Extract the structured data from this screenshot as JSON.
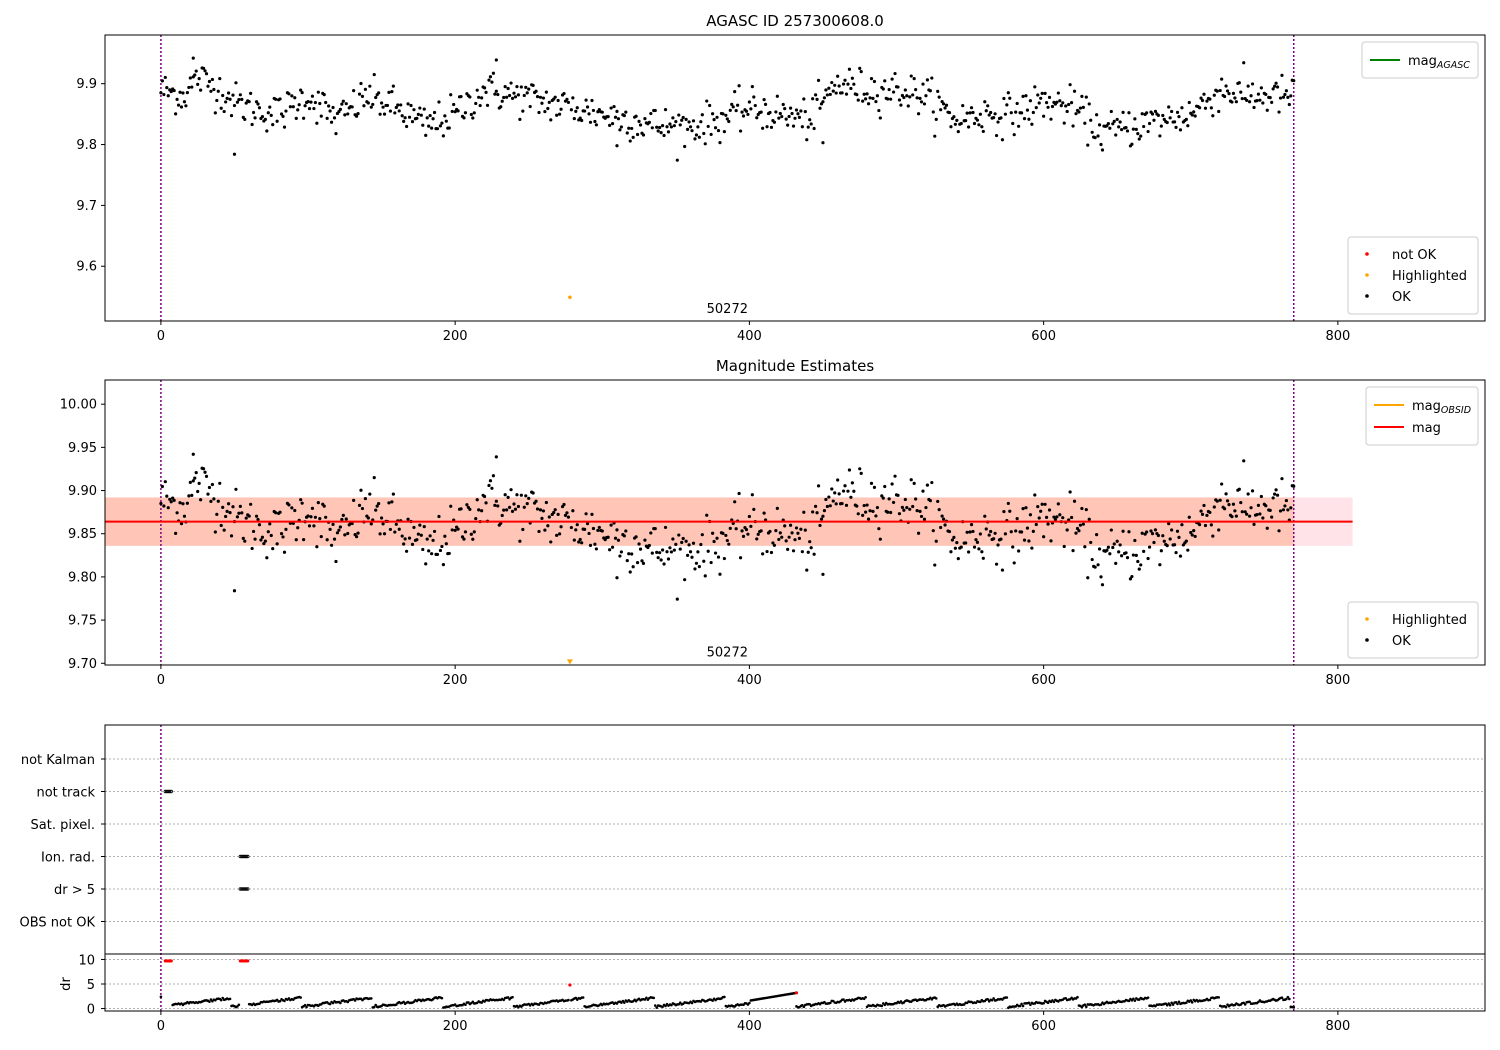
{
  "figure": {
    "title_top": "AGASC ID 257300608.0",
    "title_mid": "Magnitude Estimates"
  },
  "chart_data": [
    {
      "type": "scatter",
      "title": "AGASC ID 257300608.0",
      "xlim": [
        -38,
        900
      ],
      "ylim": [
        9.51,
        9.98
      ],
      "xticks": [
        0,
        200,
        400,
        600,
        800
      ],
      "yticks": [
        9.6,
        9.7,
        9.8,
        9.9
      ],
      "vlines": [
        0,
        770
      ],
      "obsid_label": {
        "text": "50272",
        "x": 385,
        "y": 9.523
      },
      "legend_lines": [
        {
          "name": "mag",
          "sub": "AGASC",
          "color": "#008000"
        }
      ],
      "legend_points": [
        {
          "name": "not OK",
          "color": "#ff0000"
        },
        {
          "name": "Highlighted",
          "color": "#ffa500"
        },
        {
          "name": "OK",
          "color": "#000000"
        }
      ],
      "highlighted_points": [
        {
          "x": 278,
          "y": 9.549
        }
      ],
      "series_description": "OK points, magnitude vs sample index 0-770",
      "ok_anchor_points": [
        [
          0,
          9.89
        ],
        [
          15,
          9.88
        ],
        [
          25,
          9.91
        ],
        [
          40,
          9.89
        ],
        [
          50,
          9.87
        ],
        [
          60,
          9.86
        ],
        [
          80,
          9.85
        ],
        [
          100,
          9.88
        ],
        [
          120,
          9.84
        ],
        [
          140,
          9.88
        ],
        [
          160,
          9.86
        ],
        [
          180,
          9.83
        ],
        [
          200,
          9.85
        ],
        [
          220,
          9.89
        ],
        [
          240,
          9.88
        ],
        [
          260,
          9.87
        ],
        [
          280,
          9.86
        ],
        [
          300,
          9.85
        ],
        [
          320,
          9.84
        ],
        [
          340,
          9.83
        ],
        [
          360,
          9.83
        ],
        [
          380,
          9.84
        ],
        [
          400,
          9.86
        ],
        [
          420,
          9.85
        ],
        [
          440,
          9.84
        ],
        [
          460,
          9.9
        ],
        [
          480,
          9.89
        ],
        [
          500,
          9.89
        ],
        [
          520,
          9.88
        ],
        [
          540,
          9.84
        ],
        [
          560,
          9.85
        ],
        [
          580,
          9.85
        ],
        [
          600,
          9.87
        ],
        [
          620,
          9.86
        ],
        [
          640,
          9.82
        ],
        [
          660,
          9.83
        ],
        [
          680,
          9.84
        ],
        [
          700,
          9.85
        ],
        [
          720,
          9.89
        ],
        [
          740,
          9.88
        ],
        [
          770,
          9.88
        ]
      ],
      "ok_outliers": [
        {
          "x": 50,
          "y": 9.784
        },
        {
          "x": 22,
          "y": 9.942
        },
        {
          "x": 228,
          "y": 9.939
        },
        {
          "x": 310,
          "y": 9.798
        },
        {
          "x": 450,
          "y": 9.803
        }
      ]
    },
    {
      "type": "scatter",
      "title": "Magnitude Estimates",
      "xlim": [
        -38,
        900
      ],
      "ylim": [
        9.698,
        10.028
      ],
      "xticks": [
        0,
        200,
        400,
        600,
        800
      ],
      "yticks": [
        9.7,
        9.75,
        9.8,
        9.85,
        9.9,
        9.95,
        10.0
      ],
      "vlines": [
        0,
        770
      ],
      "obsid_label": {
        "text": "50272",
        "x": 385,
        "y": 9.708
      },
      "legend_lines": [
        {
          "name": "mag",
          "sub": "OBSID",
          "color": "#ffa500"
        },
        {
          "name": "mag",
          "sub": "",
          "color": "#ff0000"
        }
      ],
      "legend_points": [
        {
          "name": "Highlighted",
          "color": "#ffa500"
        },
        {
          "name": "OK",
          "color": "#000000"
        }
      ],
      "mag_line": {
        "y": 9.864,
        "x_start": -38,
        "x_end": 810,
        "color": "#ff0000"
      },
      "pink_band": {
        "y0": 9.836,
        "y1": 9.892,
        "x_start": -38,
        "x_end": 810
      },
      "orange_band": {
        "y0": 9.836,
        "y1": 9.892,
        "x_start": -38,
        "x_end": 770
      },
      "highlighted_points": [
        {
          "x": 278,
          "y": 9.701
        }
      ],
      "ok_outliers": [
        {
          "x": 50,
          "y": 9.784
        },
        {
          "x": 22,
          "y": 9.942
        },
        {
          "x": 228,
          "y": 9.939
        },
        {
          "x": 310,
          "y": 9.799
        },
        {
          "x": 450,
          "y": 9.803
        }
      ]
    },
    {
      "type": "scatter",
      "title": "",
      "xlim": [
        -38,
        900
      ],
      "flag_rows": [
        "not Kalman",
        "not track",
        "Sat. pixel.",
        "Ion. rad.",
        "dr > 5",
        "OBS not OK"
      ],
      "flag_segments": [
        {
          "row": "not track",
          "x0": 3,
          "x1": 7
        },
        {
          "row": "Ion. rad.",
          "x0": 54,
          "x1": 59
        },
        {
          "row": "dr > 5",
          "x0": 54,
          "x1": 59
        }
      ],
      "dr_axis": {
        "label": "dr",
        "ylim": [
          -0.5,
          10.5
        ],
        "yticks": [
          0,
          5,
          10
        ]
      },
      "dr_red_points": [
        {
          "x": 3,
          "y": 9.7
        },
        {
          "x": 4,
          "y": 9.7
        },
        {
          "x": 5,
          "y": 9.7
        },
        {
          "x": 6,
          "y": 9.7
        },
        {
          "x": 7,
          "y": 9.7
        },
        {
          "x": 54,
          "y": 9.7
        },
        {
          "x": 55,
          "y": 9.7
        },
        {
          "x": 56,
          "y": 9.7
        },
        {
          "x": 57,
          "y": 9.7
        },
        {
          "x": 58,
          "y": 9.7
        },
        {
          "x": 59,
          "y": 9.7
        },
        {
          "x": 278,
          "y": 4.8
        },
        {
          "x": 432,
          "y": 3.2
        }
      ],
      "dr_description": "small offsets between 0 and 3 for most samples"
    }
  ]
}
